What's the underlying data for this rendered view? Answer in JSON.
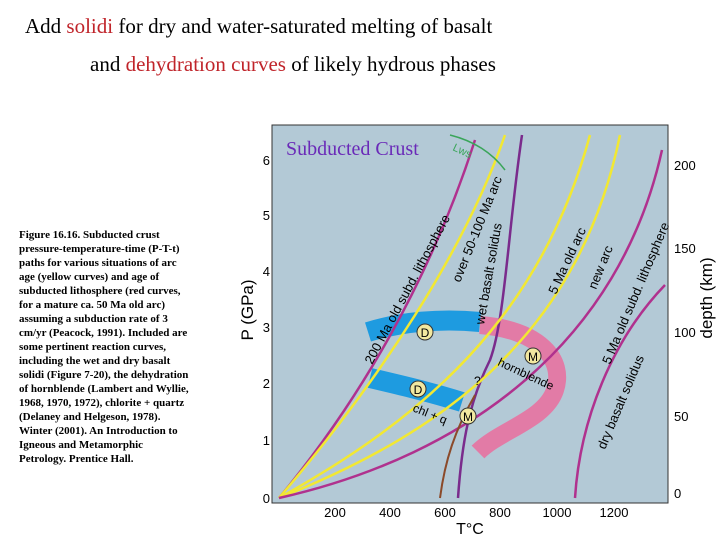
{
  "title": {
    "line1": [
      "Add ",
      "solidi",
      " for dry and water-saturated melting of basalt"
    ],
    "line2": [
      "and ",
      "dehydration curves",
      " of likely hydrous phases"
    ]
  },
  "caption": "Figure 16.16. Subducted crust pressure-temperature-time (P-T-t) paths for various situations of arc age (yellow curves) and age of subducted lithosphere (red curves, for a mature ca. 50 Ma old arc) assuming a subduction rate of 3 cm/yr (Peacock, 1991). Included are some pertinent reaction curves, including the wet and dry basalt solidi (Figure 7-20), the dehydration of hornblende (Lambert and Wyllie, 1968, 1970, 1972), chlorite + quartz (Delaney and Helgeson, 1978). Winter (2001). An Introduction to Igneous and Metamorphic Petrology. Prentice Hall.",
  "figure": {
    "inset_title": "Subducted Crust",
    "x_axis_label": "T°C",
    "y_axis_label": "P (GPa)",
    "y2_axis_label": "depth (km)",
    "x_ticks": [
      "200",
      "400",
      "600",
      "800",
      "1000",
      "1200"
    ],
    "y_ticks": [
      "0",
      "1",
      "2",
      "3",
      "4",
      "5",
      "6"
    ],
    "y2_ticks": [
      "0",
      "50",
      "100",
      "150",
      "200"
    ],
    "curve_labels": [
      "200 Ma old subd. lithosphere",
      "over 50-100 Ma arc",
      "wet basalt solidus",
      "5 Ma old arc",
      "new arc",
      "5 Ma old subd. lithosphere",
      "dry basalt solidus",
      "Lws",
      "hornblende",
      "chl + q",
      "?"
    ],
    "phase_labels": [
      "D",
      "D",
      "M",
      "M"
    ]
  }
}
